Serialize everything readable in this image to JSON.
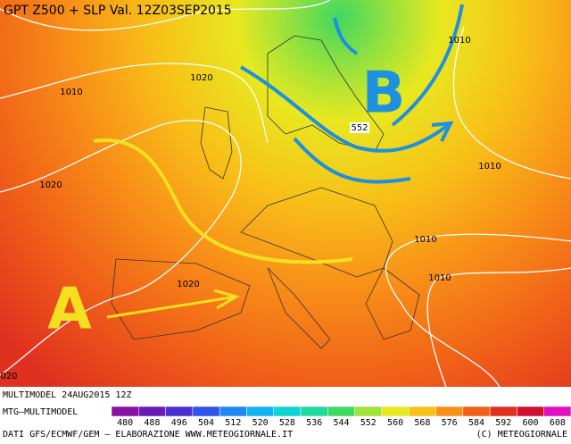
{
  "header": {
    "title": "GPT Z500 + SLP Val. 12Z03SEP2015"
  },
  "map_labels": {
    "isobars": [
      "1010",
      "1020",
      "1010",
      "1020",
      "1010",
      "1010",
      "1010",
      "1020",
      "020"
    ],
    "geopotential": "552",
    "high": "A",
    "low": "B"
  },
  "footer": {
    "model_run": "MULTIMODEL 24AUG2015 12Z",
    "model": "MTG–MULTIMODEL",
    "sources": "DATI GFS/ECMWF/GEM – ELABORAZIONE WWW.METEOGIORNALE.IT",
    "copyright": "(C) METEOGIORNALE"
  },
  "legend": {
    "ticks": [
      480,
      488,
      496,
      504,
      512,
      520,
      528,
      536,
      544,
      552,
      560,
      568,
      576,
      584,
      592,
      600,
      608
    ],
    "colors": [
      "#8b0fa0",
      "#6a1bb5",
      "#4b2fd1",
      "#2f55e8",
      "#1f88f2",
      "#12b4f0",
      "#10d4d4",
      "#20d8a0",
      "#40d860",
      "#9ee23a",
      "#e8e820",
      "#f8c018",
      "#f89018",
      "#f06018",
      "#e03020",
      "#d01030",
      "#e010c0"
    ]
  }
}
